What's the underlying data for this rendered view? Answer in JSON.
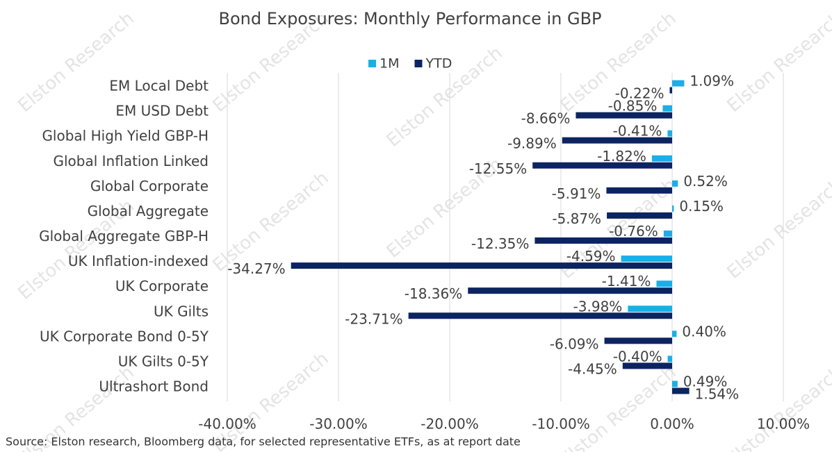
{
  "chart_data": {
    "type": "bar",
    "orientation": "horizontal",
    "title": "Bond Exposures: Monthly Performance in GBP",
    "watermark": "Elston Research",
    "source": "Source: Elston research, Bloomberg data, for selected representative ETFs, as at report date",
    "categories": [
      "EM Local Debt",
      "EM USD Debt",
      "Global High Yield GBP-H",
      "Global Inflation Linked",
      "Global Corporate",
      "Global Aggregate",
      "Global Aggregate GBP-H",
      "UK Inflation-indexed",
      "UK Corporate",
      "UK Gilts",
      "UK Corporate Bond 0-5Y",
      "UK Gilts 0-5Y",
      "Ultrashort Bond"
    ],
    "series": [
      {
        "name": "1M",
        "color": "#1aafe6",
        "values": [
          1.09,
          -0.85,
          -0.41,
          -1.82,
          0.52,
          0.15,
          -0.76,
          -4.59,
          -1.41,
          -3.98,
          0.4,
          -0.4,
          0.49
        ],
        "value_labels": [
          "1.09%",
          "-0.85%",
          "-0.41%",
          "-1.82%",
          "0.52%",
          "0.15%",
          "-0.76%",
          "-4.59%",
          "-1.41%",
          "-3.98%",
          "0.40%",
          "-0.40%",
          "0.49%"
        ]
      },
      {
        "name": "YTD",
        "color": "#0c2461",
        "values": [
          -0.22,
          -8.66,
          -9.89,
          -12.55,
          -5.91,
          -5.87,
          -12.35,
          -34.27,
          -18.36,
          -23.71,
          -6.09,
          -4.45,
          1.54
        ],
        "value_labels": [
          "-0.22%",
          "-8.66%",
          "-9.89%",
          "-12.55%",
          "-5.91%",
          "-5.87%",
          "-12.35%",
          "-34.27%",
          "-18.36%",
          "-23.71%",
          "-6.09%",
          "-4.45%",
          "1.54%"
        ]
      }
    ],
    "xlim": [
      -40,
      10
    ],
    "xticks": [
      {
        "value": -40,
        "label": "-40.00%"
      },
      {
        "value": -30,
        "label": "-30.00%"
      },
      {
        "value": -20,
        "label": "-20.00%"
      },
      {
        "value": -10,
        "label": "-10.00%"
      },
      {
        "value": 0,
        "label": "0.00%"
      },
      {
        "value": 10,
        "label": "10.00%"
      }
    ],
    "grid": true,
    "legend": "top"
  }
}
